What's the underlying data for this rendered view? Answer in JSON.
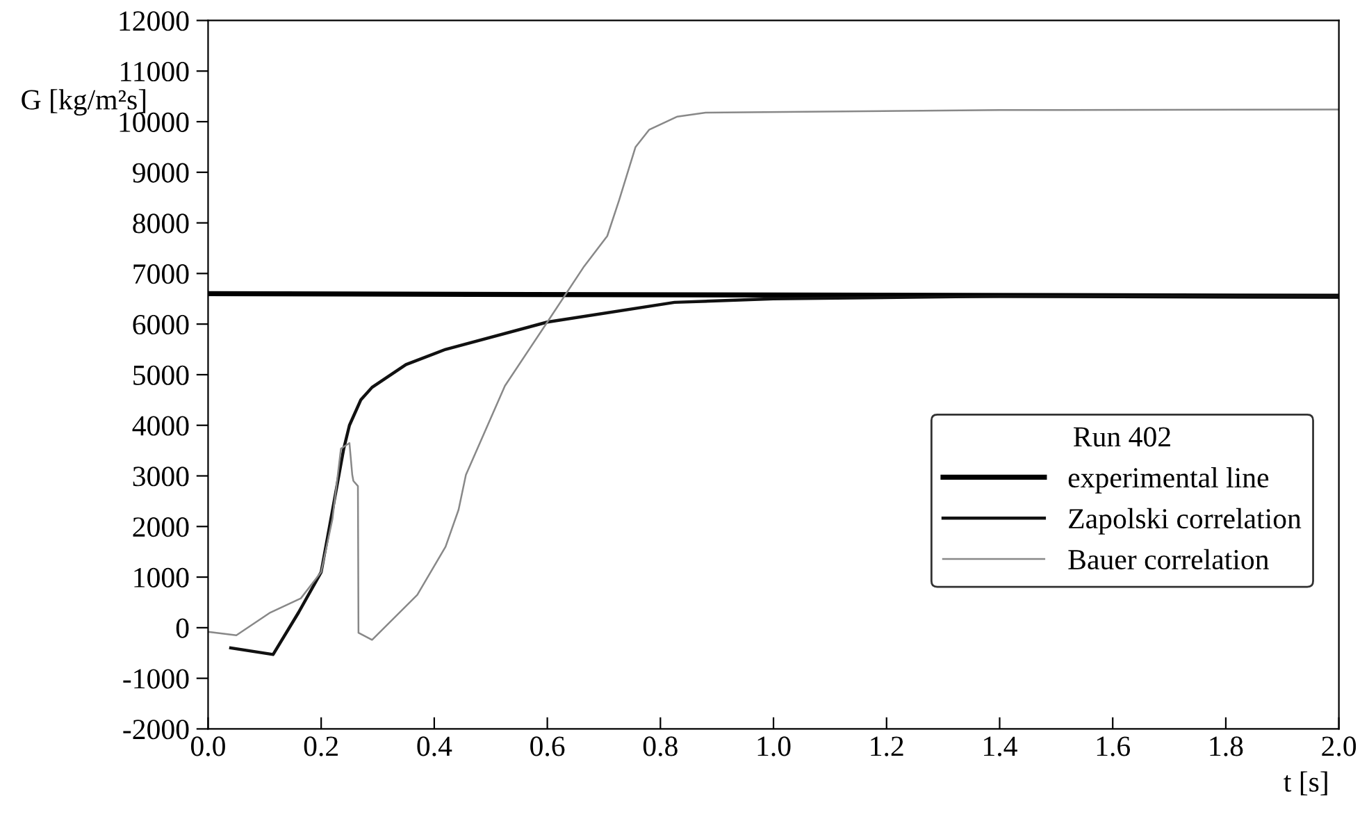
{
  "chart_data": {
    "type": "line",
    "xlabel": "t [s]",
    "ylabel": "G [kg/m²s]",
    "legend_title": "Run 402",
    "legend": "bottom right",
    "grid": false,
    "marker": "none",
    "line_style": "solid",
    "xlim": [
      0.0,
      2.0
    ],
    "xticks": [
      {
        "value": 0,
        "label": "0.0"
      },
      0.2,
      0.4,
      0.6,
      0.8,
      {
        "value": 1,
        "label": "1.0"
      },
      1.2,
      1.4,
      1.6,
      1.8,
      {
        "value": 2,
        "label": "2.0"
      }
    ],
    "ylim": [
      -2000,
      12000
    ],
    "yticks": [
      -2000,
      -1000,
      0,
      1000,
      2000,
      3000,
      4000,
      5000,
      6000,
      7000,
      8000,
      9000,
      10000,
      11000,
      12000
    ],
    "series": [
      {
        "name": "experimental line",
        "color": "#000000",
        "x": [
          0.0,
          2.0
        ],
        "values": [
          6600,
          6550
        ]
      },
      {
        "name": "Zapolski correlation",
        "color": "#111111",
        "x": [
          0.04,
          0.115,
          0.16,
          0.2,
          0.24,
          0.25,
          0.27,
          0.29,
          0.35,
          0.42,
          0.6,
          0.825,
          1.0,
          1.4,
          2.0
        ],
        "values": [
          -400,
          -530,
          300,
          1100,
          3540,
          4000,
          4500,
          4750,
          5200,
          5500,
          6040,
          6430,
          6500,
          6550,
          6550
        ]
      },
      {
        "name": "Bauer correlation",
        "color": "#888888",
        "x": [
          0.0,
          0.05,
          0.11,
          0.164,
          0.2,
          0.22,
          0.235,
          0.25,
          0.255,
          0.257,
          0.265,
          0.266,
          0.29,
          0.37,
          0.42,
          0.443,
          0.456,
          0.525,
          0.6,
          0.665,
          0.706,
          0.727,
          0.756,
          0.78,
          0.83,
          0.88,
          1.4,
          2.0
        ],
        "values": [
          -80,
          -150,
          300,
          580,
          1100,
          2150,
          3540,
          3650,
          3020,
          2900,
          2800,
          -100,
          -240,
          650,
          1600,
          2330,
          3020,
          4780,
          6040,
          7140,
          7740,
          8450,
          9500,
          9840,
          10100,
          10180,
          10230,
          10240
        ]
      }
    ]
  }
}
